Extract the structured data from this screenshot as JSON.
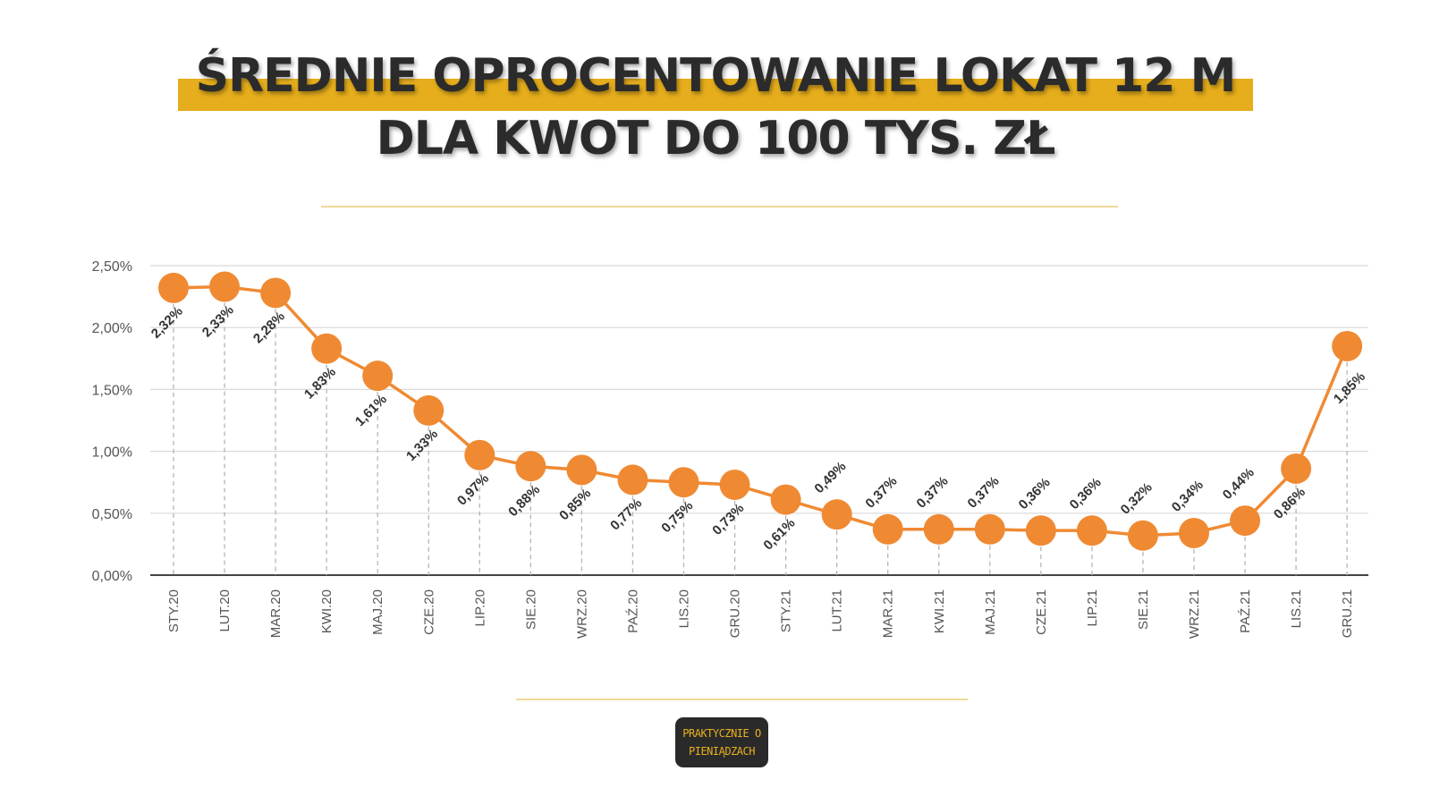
{
  "header": {
    "title_line1": "ŚREDNIE OPROCENTOWANIE LOKAT 12 M",
    "title_line2": "DLA KWOT DO 100 TYS. ZŁ"
  },
  "logo": {
    "line1": "PRAKTYCZNIE O",
    "line2": "PIENIĄDZACH"
  },
  "colors": {
    "accent": "#e6ae1c",
    "line": "#ef8a33",
    "marker": "#ef8a33",
    "grid": "#d9d9d9",
    "axis": "#555555",
    "text": "#333333"
  },
  "chart_data": {
    "type": "line",
    "title": "",
    "xlabel": "",
    "ylabel": "",
    "categories": [
      "STY.20",
      "LUT.20",
      "MAR.20",
      "KWI.20",
      "MAJ.20",
      "CZE.20",
      "LIP.20",
      "SIE.20",
      "WRZ.20",
      "PAŹ.20",
      "LIS.20",
      "GRU.20",
      "STY.21",
      "LUT.21",
      "MAR.21",
      "KWI.21",
      "MAJ.21",
      "CZE.21",
      "LIP.21",
      "SIE.21",
      "WRZ.21",
      "PAŹ.21",
      "LIS.21",
      "GRU.21"
    ],
    "series": [
      {
        "values": [
          2.32,
          2.33,
          2.28,
          1.83,
          1.61,
          1.33,
          0.97,
          0.88,
          0.85,
          0.77,
          0.75,
          0.73,
          0.61,
          0.49,
          0.37,
          0.37,
          0.37,
          0.36,
          0.36,
          0.32,
          0.34,
          0.44,
          0.86,
          1.85
        ],
        "labels": [
          "2,32%",
          "2,33%",
          "2,28%",
          "1,83%",
          "1,61%",
          "1,33%",
          "0,97%",
          "0,88%",
          "0,85%",
          "0,77%",
          "0,75%",
          "0,73%",
          "0,61%",
          "0,49%",
          "0,37%",
          "0,37%",
          "0,37%",
          "0,36%",
          "0,36%",
          "0,32%",
          "0,34%",
          "0,44%",
          "0,86%",
          "1,85%"
        ],
        "label_position": [
          "below",
          "below",
          "below",
          "below",
          "below",
          "below",
          "below",
          "below",
          "below",
          "below",
          "below",
          "below",
          "below",
          "above",
          "above",
          "above",
          "above",
          "above",
          "above",
          "above",
          "above",
          "above",
          "below",
          "below"
        ]
      }
    ],
    "ylim": [
      0,
      2.5
    ],
    "yticks": [
      0,
      0.5,
      1.0,
      1.5,
      2.0,
      2.5
    ],
    "ytick_labels": [
      "0,00%",
      "0,50%",
      "1,00%",
      "1,50%",
      "2,00%",
      "2,50%"
    ],
    "grid": true,
    "legend": "none"
  }
}
